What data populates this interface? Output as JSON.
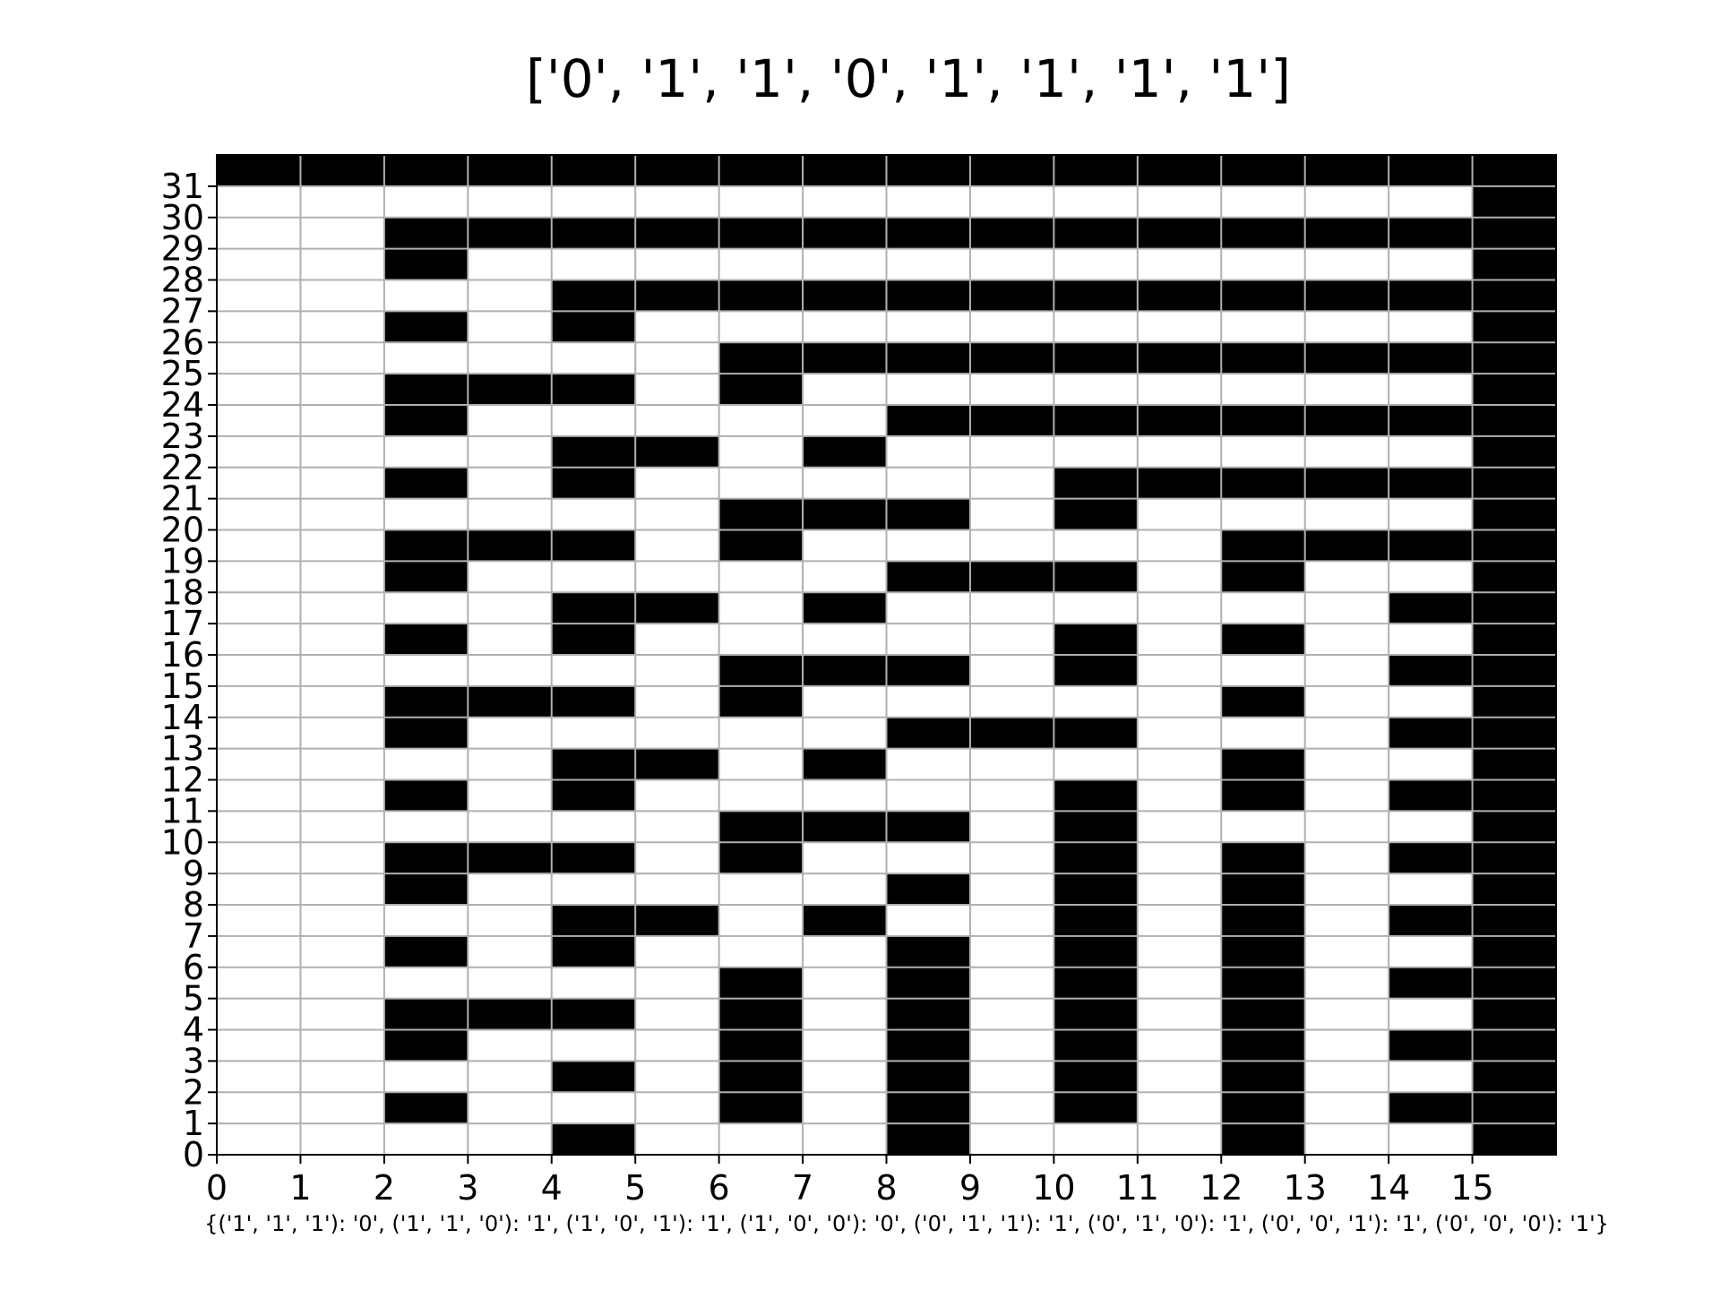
{
  "chart_data": {
    "type": "heatmap",
    "title": "['0', '1', '1', '0', '1', '1', '1', '1']",
    "xlabel": "{('1', '1', '1'): '0', ('1', '1', '0'): '1', ('1', '0', '1'): '1', ('1', '0', '0'): '0', ('0', '1', '1'): '1', ('0', '1', '0'): '1', ('0', '0', '1'): '1', ('0', '0', '0'): '1'}",
    "ylabel": "",
    "x_ticks": [
      "0",
      "1",
      "2",
      "3",
      "4",
      "5",
      "6",
      "7",
      "8",
      "9",
      "10",
      "11",
      "12",
      "13",
      "14",
      "15"
    ],
    "y_ticks": [
      "0",
      "1",
      "2",
      "3",
      "4",
      "5",
      "6",
      "7",
      "8",
      "9",
      "10",
      "11",
      "12",
      "13",
      "14",
      "15",
      "16",
      "17",
      "18",
      "19",
      "20",
      "21",
      "22",
      "23",
      "24",
      "25",
      "26",
      "27",
      "28",
      "29",
      "30",
      "31"
    ],
    "xlim": [
      0,
      16
    ],
    "ylim": [
      0,
      32
    ],
    "grid": true,
    "colors": {
      "one": "#000000",
      "zero": "#ffffff",
      "grid": "#b0b0b0"
    },
    "value_legend": "1 = black cell, 0 = white cell",
    "rows_top_to_bottom": [
      "1111111111111111",
      "0000000000000001",
      "0011111111111111",
      "0010000000000001",
      "0000111111111111",
      "0010100000000001",
      "0000001111111111",
      "0011101000000001",
      "0010000011111111",
      "0000110100000001",
      "0010100000111111",
      "0000001110100001",
      "0011101000001111",
      "0010000011101001",
      "0000110100000011",
      "0010100000101001",
      "0000001110100011",
      "0011101000001001",
      "0010000011100011",
      "0000110100001001",
      "0010100000101011",
      "0000001110100001",
      "0011101000101011",
      "0010000010101001",
      "0000110100101011",
      "0010100010101001",
      "0000001010101011",
      "0011101010101001",
      "0010001010101011",
      "0000101010101001",
      "0010001010101011",
      "0000100010001001"
    ]
  }
}
